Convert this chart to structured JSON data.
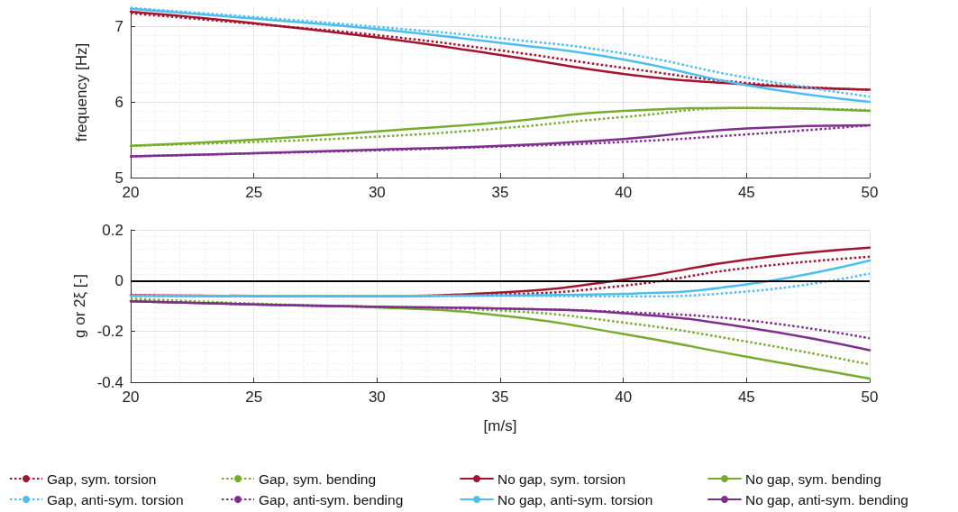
{
  "chart_data": [
    {
      "type": "line",
      "ylabel": "frequency [Hz]",
      "x": [
        20,
        25,
        30,
        35,
        40,
        45,
        50
      ],
      "xlim": [
        20,
        50
      ],
      "xticks": [
        20,
        25,
        30,
        35,
        40,
        45,
        50
      ],
      "ylim": [
        5,
        7.25
      ],
      "yticks": [
        5,
        6,
        7
      ],
      "grid": true,
      "legend": false,
      "marker": "none",
      "series": [
        {
          "color": "#a2142f",
          "line_style": "dotted",
          "values": [
            7.17,
            7.03,
            6.88,
            6.68,
            6.45,
            6.25,
            6.16
          ]
        },
        {
          "color": "#77ac30",
          "line_style": "dotted",
          "values": [
            5.42,
            5.47,
            5.54,
            5.65,
            5.8,
            5.92,
            5.89
          ]
        },
        {
          "color": "#a2142f",
          "line_style": "solid",
          "values": [
            7.19,
            7.04,
            6.85,
            6.62,
            6.37,
            6.23,
            6.16
          ]
        },
        {
          "color": "#77ac30",
          "line_style": "solid",
          "values": [
            5.42,
            5.5,
            5.61,
            5.73,
            5.88,
            5.92,
            5.88
          ]
        },
        {
          "color": "#4dbeee",
          "line_style": "dotted",
          "values": [
            7.24,
            7.12,
            6.99,
            6.84,
            6.64,
            6.32,
            6.07
          ]
        },
        {
          "color": "#7e2f8e",
          "line_style": "dotted",
          "values": [
            5.28,
            5.32,
            5.36,
            5.41,
            5.47,
            5.57,
            5.69
          ]
        },
        {
          "color": "#4dbeee",
          "line_style": "solid",
          "values": [
            7.23,
            7.1,
            6.96,
            6.78,
            6.56,
            6.22,
            6.0
          ]
        },
        {
          "color": "#7e2f8e",
          "line_style": "solid",
          "values": [
            5.28,
            5.32,
            5.37,
            5.42,
            5.51,
            5.65,
            5.69
          ]
        }
      ]
    },
    {
      "type": "line",
      "xlabel": "[m/s]",
      "ylabel": "g or 2ξ [-]",
      "x": [
        20,
        25,
        30,
        35,
        40,
        45,
        50
      ],
      "xlim": [
        20,
        50
      ],
      "xticks": [
        20,
        25,
        30,
        35,
        40,
        45,
        50
      ],
      "ylim": [
        -0.4,
        0.2
      ],
      "yticks": [
        -0.4,
        -0.2,
        0,
        0.2
      ],
      "grid": true,
      "legend": "bottom",
      "marker": "none",
      "ref_lines": [
        {
          "axis": "y",
          "value": 0,
          "color": "#000000"
        }
      ],
      "series": [
        {
          "name": "Gap, sym. torsion",
          "color": "#a2142f",
          "line_style": "dotted",
          "values": [
            -0.058,
            -0.06,
            -0.06,
            -0.054,
            -0.02,
            0.05,
            0.094
          ]
        },
        {
          "name": "Gap, sym. bending",
          "color": "#77ac30",
          "line_style": "dotted",
          "values": [
            -0.071,
            -0.09,
            -0.105,
            -0.118,
            -0.165,
            -0.24,
            -0.33
          ]
        },
        {
          "name": "No gap, sym. torsion",
          "color": "#a2142f",
          "line_style": "solid",
          "values": [
            -0.058,
            -0.06,
            -0.06,
            -0.047,
            0.004,
            0.083,
            0.13
          ]
        },
        {
          "name": "No gap, sym. bending",
          "color": "#77ac30",
          "line_style": "solid",
          "values": [
            -0.081,
            -0.094,
            -0.105,
            -0.137,
            -0.21,
            -0.3,
            -0.386
          ]
        },
        {
          "name": "Gap, anti-sym. torsion",
          "color": "#4dbeee",
          "line_style": "dotted",
          "values": [
            -0.06,
            -0.06,
            -0.06,
            -0.06,
            -0.062,
            -0.043,
            0.028
          ]
        },
        {
          "name": "Gap, anti-sym. bending",
          "color": "#7e2f8e",
          "line_style": "dotted",
          "values": [
            -0.081,
            -0.094,
            -0.103,
            -0.11,
            -0.124,
            -0.156,
            -0.227
          ]
        },
        {
          "name": "No gap, anti-sym. torsion",
          "color": "#4dbeee",
          "line_style": "solid",
          "values": [
            -0.06,
            -0.06,
            -0.06,
            -0.058,
            -0.052,
            -0.015,
            0.079
          ]
        },
        {
          "name": "No gap, anti-sym. bending",
          "color": "#7e2f8e",
          "line_style": "solid",
          "values": [
            -0.081,
            -0.094,
            -0.103,
            -0.11,
            -0.128,
            -0.184,
            -0.274
          ]
        }
      ]
    }
  ]
}
